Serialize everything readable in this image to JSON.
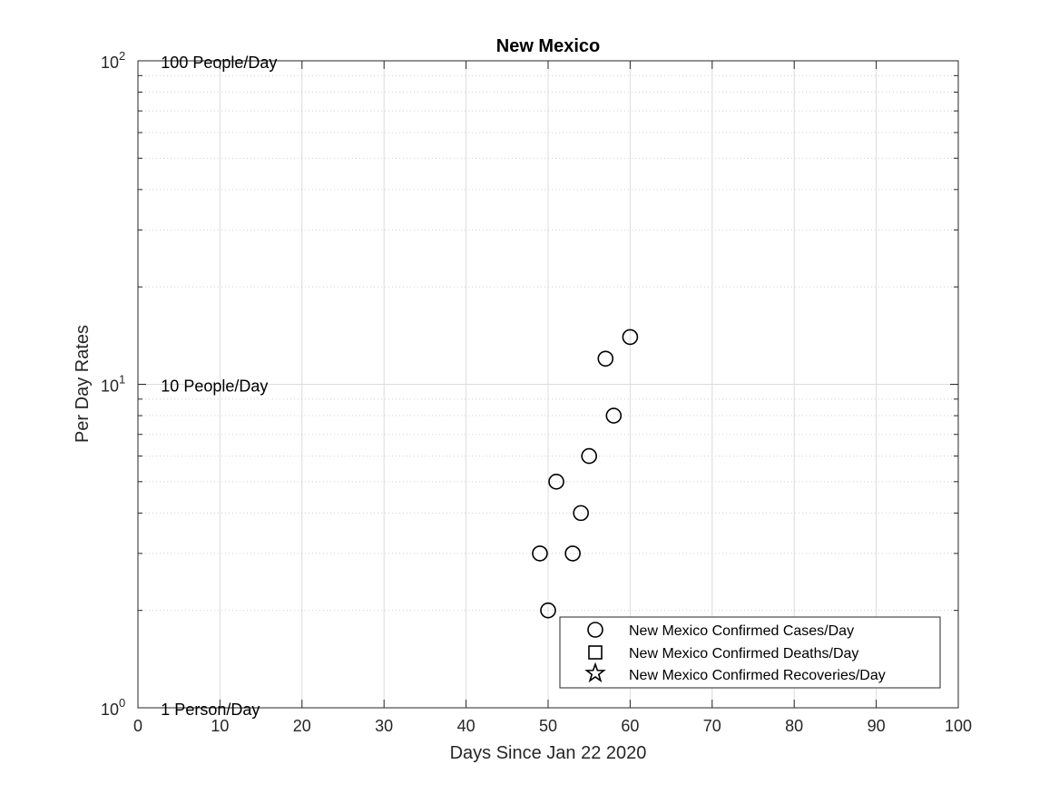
{
  "chart_data": {
    "type": "scatter",
    "title": "New Mexico",
    "xlabel": "Days Since Jan 22 2020",
    "ylabel": "Per Day Rates",
    "xlim": [
      0,
      100
    ],
    "ylim": [
      1,
      100
    ],
    "yscale": "log",
    "grid": true,
    "x_ticks": [
      0,
      10,
      20,
      30,
      40,
      50,
      60,
      70,
      80,
      90,
      100
    ],
    "x_tick_labels": [
      "0",
      "10",
      "20",
      "30",
      "40",
      "50",
      "60",
      "70",
      "80",
      "90",
      "100"
    ],
    "y_ticks": [
      1,
      10,
      100
    ],
    "y_tick_labels": [
      {
        "base": "10",
        "exp": "0"
      },
      {
        "base": "10",
        "exp": "1"
      },
      {
        "base": "10",
        "exp": "2"
      }
    ],
    "annotations": [
      {
        "text": "100 People/Day",
        "x": 2.8,
        "y": 100
      },
      {
        "text": "10 People/Day",
        "x": 2.8,
        "y": 10
      },
      {
        "text": "1 Person/Day",
        "x": 2.8,
        "y": 1
      }
    ],
    "legend_position": "bottom-right",
    "series": [
      {
        "name": "New Mexico Confirmed Cases/Day",
        "marker": "circle",
        "color": "#000000",
        "points": [
          {
            "x": 49,
            "y": 3
          },
          {
            "x": 50,
            "y": 2
          },
          {
            "x": 51,
            "y": 5
          },
          {
            "x": 53,
            "y": 3
          },
          {
            "x": 54,
            "y": 4
          },
          {
            "x": 55,
            "y": 6
          },
          {
            "x": 57,
            "y": 12
          },
          {
            "x": 58,
            "y": 8
          },
          {
            "x": 60,
            "y": 14
          }
        ]
      },
      {
        "name": "New Mexico Confirmed Deaths/Day",
        "marker": "square",
        "color": "#000000",
        "points": []
      },
      {
        "name": "New Mexico Confirmed Recoveries/Day",
        "marker": "star",
        "color": "#000000",
        "points": []
      }
    ]
  }
}
